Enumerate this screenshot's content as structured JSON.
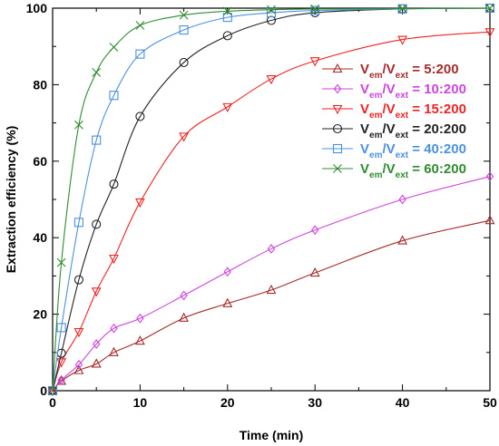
{
  "chart_data": {
    "type": "line",
    "xlabel": "Time (min)",
    "ylabel": "Extraction efficiency (%)",
    "xlim": [
      0,
      50
    ],
    "ylim": [
      0,
      100
    ],
    "xticks": [
      0,
      10,
      20,
      30,
      40,
      50
    ],
    "yticks": [
      0,
      20,
      40,
      60,
      80,
      100
    ],
    "grid": false,
    "legend_position": "right",
    "series": [
      {
        "name_parts": [
          "V",
          "em",
          "/V",
          "ext",
          " = 5:200"
        ],
        "color": "#a52a2a",
        "marker": "triangle-up",
        "x": [
          0,
          1,
          3,
          5,
          7,
          10,
          15,
          20,
          25,
          30,
          40,
          50
        ],
        "y": [
          0,
          2.5,
          5.3,
          7.0,
          10.0,
          13.0,
          19.0,
          22.8,
          26.3,
          30.8,
          39.2,
          44.5
        ]
      },
      {
        "name_parts": [
          "V",
          "em",
          "/V",
          "ext",
          " = 10:200"
        ],
        "color": "#cc44dd",
        "marker": "diamond",
        "x": [
          0,
          1,
          3,
          5,
          7,
          10,
          15,
          20,
          25,
          30,
          40,
          50
        ],
        "y": [
          0,
          2.8,
          6.8,
          12.2,
          16.3,
          18.9,
          24.9,
          31.1,
          37.1,
          42.0,
          50.0,
          56.0
        ]
      },
      {
        "name_parts": [
          "V",
          "em",
          "/V",
          "ext",
          " = 15:200"
        ],
        "color": "#ee2222",
        "marker": "triangle-down",
        "x": [
          0,
          1,
          3,
          5,
          7,
          10,
          15,
          20,
          25,
          30,
          40,
          50
        ],
        "y": [
          0,
          7.5,
          15.4,
          26.0,
          34.6,
          49.3,
          66.5,
          74.2,
          81.5,
          86.2,
          91.8,
          93.8
        ]
      },
      {
        "name_parts": [
          "V",
          "em",
          "/V",
          "ext",
          " = 20:200"
        ],
        "color": "#222222",
        "marker": "circle",
        "x": [
          0,
          1,
          3,
          5,
          7,
          10,
          15,
          20,
          25,
          30,
          40,
          50
        ],
        "y": [
          0,
          9.8,
          29.0,
          43.5,
          54.0,
          71.7,
          85.8,
          92.8,
          96.8,
          98.8,
          99.8,
          100
        ]
      },
      {
        "name_parts": [
          "V",
          "em",
          "/V",
          "ext",
          " = 40:200"
        ],
        "color": "#4a90e2",
        "marker": "square",
        "x": [
          0,
          1,
          3,
          5,
          7,
          10,
          15,
          20,
          25,
          30,
          40,
          50
        ],
        "y": [
          0,
          16.5,
          44.0,
          65.5,
          77.2,
          88.0,
          94.3,
          97.6,
          98.8,
          99.4,
          99.8,
          100
        ]
      },
      {
        "name_parts": [
          "V",
          "em",
          "/V",
          "ext",
          " = 60:200"
        ],
        "color": "#2e8b2e",
        "marker": "x",
        "x": [
          0,
          1,
          3,
          5,
          7,
          10,
          15,
          20,
          25,
          30,
          40,
          50
        ],
        "y": [
          0,
          33.5,
          69.5,
          83.2,
          89.8,
          95.5,
          98.2,
          99.2,
          99.6,
          99.8,
          99.9,
          100
        ]
      }
    ]
  }
}
